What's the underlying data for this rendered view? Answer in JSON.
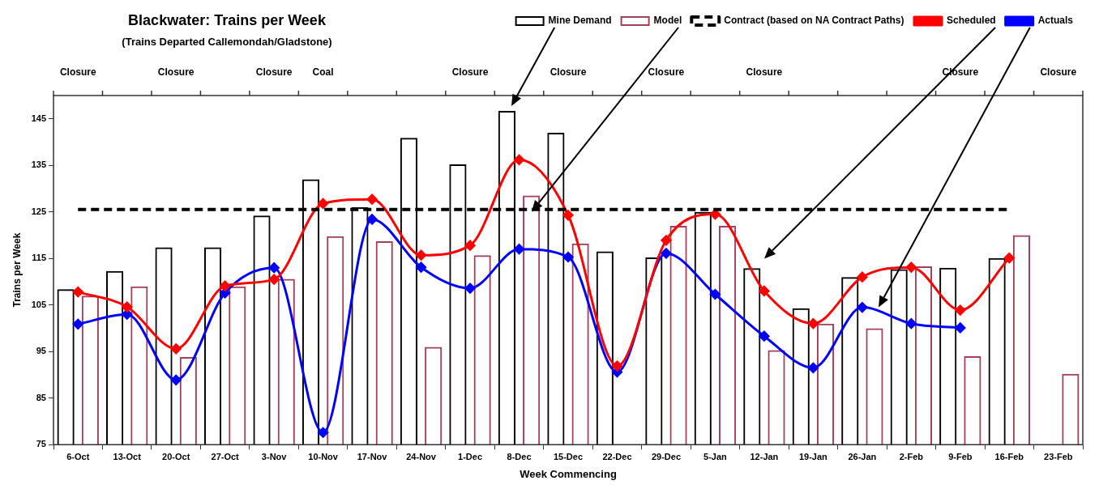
{
  "chart_data": {
    "type": "bar",
    "title": "Blackwater: Trains per Week",
    "subtitle": "(Trains Departed Callemondah/Gladstone)",
    "xlabel": "Week Commencing",
    "ylabel": "Trains per Week",
    "categories": [
      "6-Oct",
      "13-Oct",
      "20-Oct",
      "27-Oct",
      "3-Nov",
      "10-Nov",
      "17-Nov",
      "24-Nov",
      "1-Dec",
      "8-Dec",
      "15-Dec",
      "22-Dec",
      "29-Dec",
      "5-Jan",
      "12-Jan",
      "19-Jan",
      "26-Jan",
      "2-Feb",
      "9-Feb",
      "16-Feb",
      "23-Feb"
    ],
    "series": [
      {
        "name": "Mine Demand",
        "color": "#000000",
        "values": [
          108.4,
          112.3,
          117.4,
          117.4,
          124.2,
          132,
          126,
          140.9,
          135.2,
          146.7,
          142,
          116.5,
          115.2,
          125,
          112.9,
          104.3,
          111,
          112.7,
          113,
          115.1,
          null
        ]
      },
      {
        "name": "Model",
        "color": "#a0405a",
        "values": [
          107,
          109,
          93.8,
          109,
          110.6,
          119.8,
          118.7,
          96,
          115.7,
          128.5,
          118.2,
          null,
          122,
          122,
          95.3,
          101,
          100,
          113.3,
          94,
          120,
          90.2
        ]
      },
      {
        "name": "Contract (based on NA Contract Paths)",
        "type": "line",
        "color": "#000000",
        "line_style": "dashed",
        "marker": "none",
        "values": [
          125.5,
          125.5,
          125.5,
          125.5,
          125.5,
          125.5,
          125.5,
          125.5,
          125.5,
          125.5,
          125.5,
          125.5,
          125.5,
          125.5,
          125.5,
          125.5,
          125.5,
          125.5,
          125.5,
          125.5,
          null
        ]
      },
      {
        "name": "Scheduled",
        "type": "line",
        "color": "#ff0000",
        "line_style": "solid",
        "marker": "diamond",
        "values": [
          107.8,
          104.6,
          95.6,
          109.1,
          110.5,
          126.8,
          127.7,
          115.7,
          117.8,
          136.2,
          124.3,
          91.9,
          118.9,
          124.5,
          108,
          101,
          111,
          113.1,
          103.9,
          115.1,
          null
        ]
      },
      {
        "name": "Actuals",
        "type": "line",
        "color": "#0000ff",
        "line_style": "solid",
        "marker": "diamond",
        "values": [
          100.9,
          103,
          88.9,
          107.6,
          113,
          77.6,
          123.4,
          113.1,
          108.6,
          117,
          115.3,
          90.6,
          116.1,
          107.3,
          98.3,
          91.5,
          104.5,
          101,
          100.1,
          null,
          null
        ]
      }
    ],
    "ylim": [
      75,
      150
    ],
    "yticks": [
      75,
      85,
      95,
      105,
      115,
      125,
      135,
      145
    ],
    "grid": false,
    "legend": "top right",
    "annotations": [
      "Closure",
      "Closure",
      "Closure",
      "Coal",
      "Closure",
      "Closure",
      "Closure",
      "Closure",
      "Closure",
      "Closure"
    ]
  }
}
